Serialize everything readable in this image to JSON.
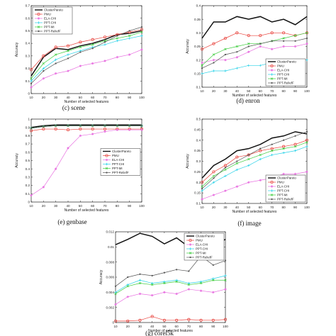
{
  "legend_names": [
    "ClusterPareto",
    "PMU",
    "ELA-CHI",
    "PPT-CHI",
    "PPT-MI",
    "PPT-ReliefF"
  ],
  "series_styles": [
    {
      "color": "#111111",
      "marker": "none"
    },
    {
      "color": "#e8403a",
      "marker": "circle"
    },
    {
      "color": "#e870e0",
      "marker": "star"
    },
    {
      "color": "#2ad2e8",
      "marker": "plus"
    },
    {
      "color": "#3ccc3c",
      "marker": "x"
    },
    {
      "color": "#555555",
      "marker": "dot"
    }
  ],
  "chart_data": [
    {
      "type": "line",
      "caption": "(c)   scene",
      "xlabel": "Number of selected features",
      "ylabel": "Accuracy",
      "x": [
        10,
        20,
        30,
        40,
        50,
        60,
        70,
        80,
        90,
        100
      ],
      "xlim": [
        10,
        100
      ],
      "ylim": [
        0,
        0.7
      ],
      "xticks": [
        "10",
        "20",
        "30",
        "40",
        "50",
        "60",
        "70",
        "80",
        "90",
        "100"
      ],
      "yticks": [
        "0",
        "0.1",
        "0.2",
        "0.3",
        "0.4",
        "0.5",
        "0.6",
        "0.7"
      ],
      "legend": "top-left",
      "series": [
        {
          "values": [
            0.14,
            0.29,
            0.36,
            0.35,
            0.38,
            0.4,
            0.43,
            0.47,
            0.48,
            0.5
          ]
        },
        {
          "values": [
            0.19,
            0.3,
            0.37,
            0.38,
            0.41,
            0.43,
            0.45,
            0.47,
            0.49,
            0.51
          ]
        },
        {
          "values": [
            0.05,
            0.12,
            0.16,
            0.18,
            0.22,
            0.24,
            0.26,
            0.29,
            0.31,
            0.35
          ]
        },
        {
          "values": [
            0.1,
            0.2,
            0.27,
            0.31,
            0.34,
            0.37,
            0.39,
            0.42,
            0.44,
            0.46
          ]
        },
        {
          "values": [
            0.12,
            0.24,
            0.31,
            0.34,
            0.37,
            0.39,
            0.42,
            0.44,
            0.46,
            0.49
          ]
        },
        {
          "values": [
            0.08,
            0.18,
            0.24,
            0.28,
            0.33,
            0.36,
            0.41,
            0.46,
            0.5,
            0.53
          ]
        }
      ]
    },
    {
      "type": "line",
      "caption": "(d)   enron",
      "xlabel": "Number of selected features",
      "ylabel": "Accuracy",
      "x": [
        10,
        20,
        30,
        40,
        50,
        60,
        70,
        80,
        90,
        100
      ],
      "xlim": [
        10,
        100
      ],
      "ylim": [
        0.1,
        0.4
      ],
      "xticks": [
        "10",
        "20",
        "30",
        "40",
        "50",
        "60",
        "70",
        "80",
        "90",
        "100"
      ],
      "yticks": [
        "0.1",
        "0.15",
        "0.2",
        "0.25",
        "0.3",
        "0.35",
        "0.4"
      ],
      "legend": "bottom-right",
      "series": [
        {
          "values": [
            0.28,
            0.34,
            0.34,
            0.36,
            0.35,
            0.36,
            0.34,
            0.35,
            0.33,
            0.36
          ]
        },
        {
          "values": [
            0.24,
            0.26,
            0.28,
            0.3,
            0.29,
            0.29,
            0.3,
            0.3,
            0.29,
            0.3
          ]
        },
        {
          "values": [
            0.19,
            0.2,
            0.2,
            0.21,
            0.23,
            0.25,
            0.24,
            0.25,
            0.25,
            0.26
          ]
        },
        {
          "values": [
            0.15,
            0.16,
            0.16,
            0.17,
            0.18,
            0.18,
            0.19,
            0.19,
            0.2,
            0.2
          ]
        },
        {
          "values": [
            0.18,
            0.22,
            0.24,
            0.25,
            0.26,
            0.26,
            0.27,
            0.28,
            0.29,
            0.3
          ]
        },
        {
          "values": [
            0.17,
            0.19,
            0.22,
            0.23,
            0.25,
            0.26,
            0.27,
            0.27,
            0.27,
            0.28
          ]
        }
      ]
    },
    {
      "type": "line",
      "caption": "(e)   genbase",
      "xlabel": "Number of selected features",
      "ylabel": "Accuracy",
      "x": [
        10,
        20,
        30,
        40,
        50,
        60,
        70,
        80,
        90,
        100
      ],
      "xlim": [
        10,
        100
      ],
      "ylim": [
        0,
        1
      ],
      "xticks": [
        "10",
        "20",
        "30",
        "40",
        "50",
        "60",
        "70",
        "80",
        "90",
        "100"
      ],
      "yticks": [
        "0",
        "0.1",
        "0.2",
        "0.3",
        "0.4",
        "0.5",
        "0.6",
        "0.7",
        "0.8",
        "0.9",
        "1"
      ],
      "legend": "right",
      "series": [
        {
          "values": [
            0.9,
            0.92,
            0.93,
            0.93,
            0.93,
            0.93,
            0.93,
            0.93,
            0.93,
            0.93
          ]
        },
        {
          "values": [
            0.86,
            0.88,
            0.88,
            0.87,
            0.88,
            0.88,
            0.88,
            0.88,
            0.88,
            0.88
          ]
        },
        {
          "values": [
            0.08,
            0.18,
            0.4,
            0.65,
            0.8,
            0.82,
            0.85,
            0.87,
            0.87,
            0.87
          ]
        },
        {
          "values": [
            0.89,
            0.91,
            0.92,
            0.92,
            0.92,
            0.92,
            0.92,
            0.92,
            0.92,
            0.92
          ]
        },
        {
          "values": [
            0.89,
            0.91,
            0.92,
            0.92,
            0.92,
            0.92,
            0.92,
            0.92,
            0.92,
            0.92
          ]
        },
        {
          "values": [
            0.89,
            0.91,
            0.92,
            0.92,
            0.92,
            0.92,
            0.92,
            0.92,
            0.92,
            0.92
          ]
        }
      ]
    },
    {
      "type": "line",
      "caption": "(f)   image",
      "xlabel": "Number of selected features",
      "ylabel": "Accuracy",
      "x": [
        10,
        20,
        30,
        40,
        50,
        60,
        70,
        80,
        90,
        100
      ],
      "xlim": [
        10,
        100
      ],
      "ylim": [
        0.1,
        0.5
      ],
      "xticks": [
        "10",
        "20",
        "30",
        "40",
        "50",
        "60",
        "70",
        "80",
        "90",
        "100"
      ],
      "yticks": [
        "0.1",
        "0.15",
        "0.2",
        "0.25",
        "0.3",
        "0.35",
        "0.4",
        "0.45",
        "0.5"
      ],
      "legend": "bottom-right",
      "series": [
        {
          "values": [
            0.22,
            0.28,
            0.31,
            0.35,
            0.36,
            0.38,
            0.41,
            0.42,
            0.44,
            0.43
          ]
        },
        {
          "values": [
            0.2,
            0.25,
            0.28,
            0.32,
            0.33,
            0.35,
            0.36,
            0.37,
            0.38,
            0.4
          ]
        },
        {
          "values": [
            0.12,
            0.14,
            0.16,
            0.18,
            0.2,
            0.21,
            0.22,
            0.24,
            0.24,
            0.25
          ]
        },
        {
          "values": [
            0.16,
            0.2,
            0.23,
            0.26,
            0.28,
            0.31,
            0.33,
            0.34,
            0.35,
            0.37
          ]
        },
        {
          "values": [
            0.18,
            0.23,
            0.26,
            0.29,
            0.31,
            0.33,
            0.35,
            0.36,
            0.37,
            0.39
          ]
        },
        {
          "values": [
            0.17,
            0.22,
            0.27,
            0.3,
            0.33,
            0.36,
            0.38,
            0.4,
            0.42,
            0.44
          ]
        }
      ]
    },
    {
      "type": "line",
      "caption": "(g)   corel5k",
      "xlabel": "Number of selected features",
      "ylabel": "Accuracy",
      "x": [
        10,
        20,
        30,
        40,
        50,
        60,
        70,
        80,
        90,
        100
      ],
      "xlim": [
        10,
        100
      ],
      "ylim": [
        0,
        0.012
      ],
      "xticks": [
        "10",
        "20",
        "30",
        "40",
        "50",
        "60",
        "70",
        "80",
        "90",
        "100"
      ],
      "yticks": [
        "0",
        "0.002",
        "0.004",
        "0.006",
        "0.008",
        "0.01",
        "0.012"
      ],
      "legend": "top-right",
      "series": [
        {
          "values": [
            0.0103,
            0.011,
            0.0118,
            0.0114,
            0.0104,
            0.0112,
            0.01,
            0.0108,
            0.0102,
            0.011
          ]
        },
        {
          "values": [
            0.0002,
            0.0002,
            0.0003,
            0.0008,
            0.0003,
            0.0003,
            0.0004,
            0.0003,
            0.0003,
            0.0004
          ]
        },
        {
          "values": [
            0.0024,
            0.0034,
            0.0038,
            0.0036,
            0.004,
            0.0038,
            0.0044,
            0.0042,
            0.004,
            0.0044
          ]
        },
        {
          "values": [
            0.004,
            0.005,
            0.0056,
            0.0052,
            0.0054,
            0.0056,
            0.0052,
            0.0054,
            0.0058,
            0.0062
          ]
        },
        {
          "values": [
            0.0038,
            0.0048,
            0.0052,
            0.005,
            0.0052,
            0.0054,
            0.005,
            0.0052,
            0.0056,
            0.0056
          ]
        },
        {
          "values": [
            0.0048,
            0.006,
            0.0064,
            0.0062,
            0.0066,
            0.007,
            0.0068,
            0.0088,
            0.0076,
            0.0082
          ]
        }
      ]
    }
  ]
}
